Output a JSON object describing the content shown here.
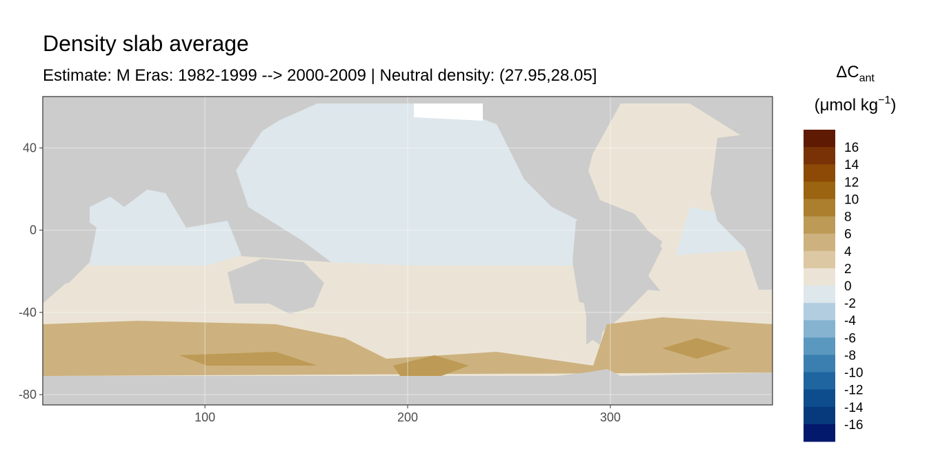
{
  "chart_data": {
    "type": "map",
    "title": "Density slab average",
    "subtitle": "Estimate: M Eras: 1982-1999 --> 2000-2009 | Neutral density: (27.95,28.05]",
    "xlim": [
      20,
      380
    ],
    "xticks": [
      100,
      200,
      300
    ],
    "ylim": [
      -85,
      65
    ],
    "yticks": [
      40,
      0,
      -40,
      -80
    ],
    "grid": true,
    "legend": {
      "title_main": "ΔC",
      "title_sub": "ant",
      "unit_main": "(μmol kg",
      "unit_sup": "−1",
      "unit_end": ")",
      "breaks": [
        16,
        14,
        12,
        10,
        8,
        6,
        4,
        2,
        0,
        -2,
        -4,
        -6,
        -8,
        -10,
        -12,
        -14,
        -16
      ],
      "colors": [
        "#5e1a03",
        "#793206",
        "#8c4a06",
        "#9a6410",
        "#ab7f2e",
        "#bd9a55",
        "#cdb27f",
        "#dcc8a3",
        "#ebe4d6",
        "#dde7ec",
        "#b3cde0",
        "#86b3cf",
        "#5b98bf",
        "#3a7fb0",
        "#1f65a0",
        "#0d4d8e",
        "#063a7c",
        "#03196b"
      ]
    }
  }
}
